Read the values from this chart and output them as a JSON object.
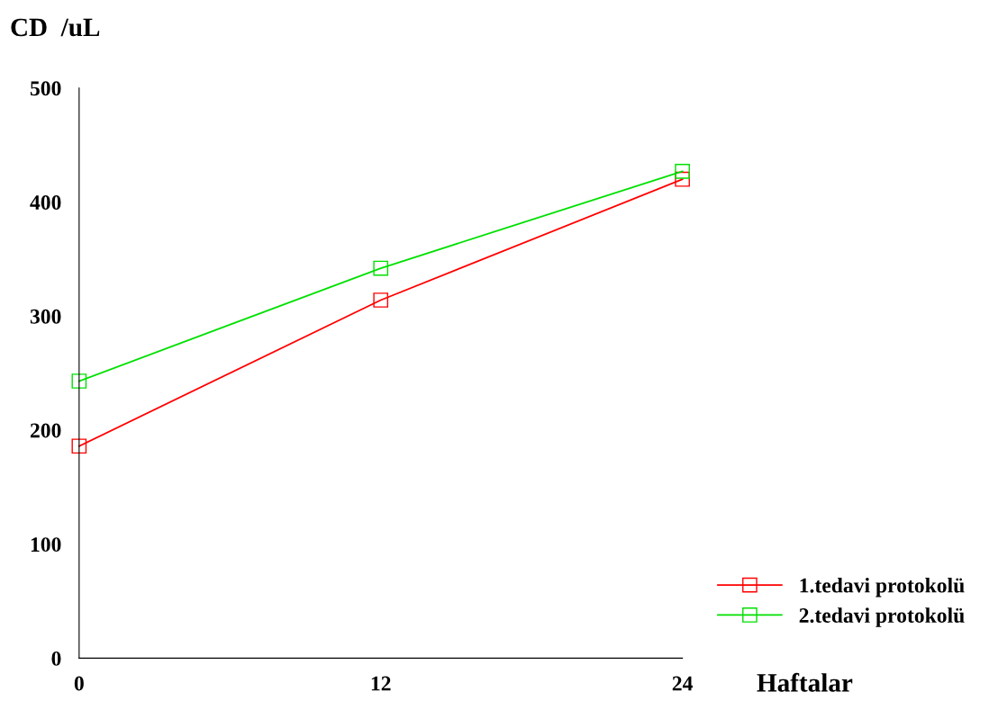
{
  "chart_data": {
    "type": "line",
    "ylabel": "CD  /uL",
    "xlabel": "Haftalar",
    "x": [
      0,
      12,
      24
    ],
    "series": [
      {
        "name": "1.tedavi protokolü",
        "color": "#ff0000",
        "values": [
          186,
          314,
          420
        ]
      },
      {
        "name": "2.tedavi protokolü",
        "color": "#00e000",
        "values": [
          243,
          342,
          427
        ]
      }
    ],
    "xlim": [
      0,
      24
    ],
    "xticks": [
      0,
      12,
      24
    ],
    "ylim": [
      0,
      500
    ],
    "yticks": [
      0,
      100,
      200,
      300,
      400,
      500
    ],
    "marker": "square",
    "line_style": "solid",
    "grid": false,
    "legend": "bottom right"
  }
}
